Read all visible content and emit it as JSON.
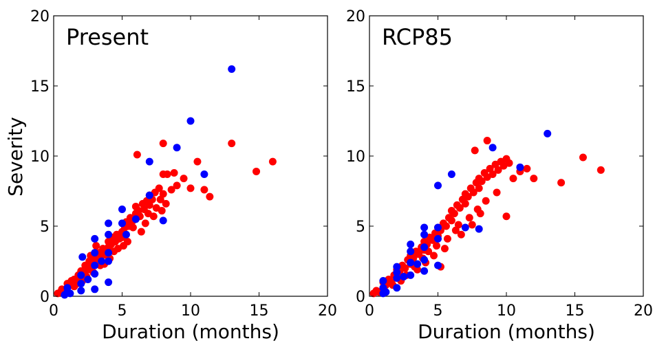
{
  "chart_data": [
    {
      "type": "scatter",
      "title": "Present",
      "xlabel": "Duration (months)",
      "ylabel": "Severity",
      "xlim": [
        0,
        20
      ],
      "ylim": [
        0,
        20
      ],
      "xticks": [
        "0",
        "5",
        "10",
        "15",
        "20"
      ],
      "yticks": [
        "0",
        "5",
        "10",
        "15",
        "20"
      ],
      "grid": false,
      "colors": {
        "red": "#ff0000",
        "blue": "#0000ff"
      },
      "series": [
        {
          "color": "#ff0000",
          "points": [
            [
              0.3,
              0.2
            ],
            [
              0.5,
              0.3
            ],
            [
              0.6,
              0.5
            ],
            [
              0.8,
              0.4
            ],
            [
              1,
              0.6
            ],
            [
              1,
              0.9
            ],
            [
              1.2,
              0.8
            ],
            [
              1.3,
              1.1
            ],
            [
              1.5,
              1.2
            ],
            [
              1.5,
              0.7
            ],
            [
              1.8,
              1.5
            ],
            [
              2,
              1.3
            ],
            [
              2,
              1.8
            ],
            [
              2.2,
              1.6
            ],
            [
              2.3,
              2.2
            ],
            [
              2.5,
              1.9
            ],
            [
              2.6,
              2.5
            ],
            [
              2.8,
              2.1
            ],
            [
              3,
              2.4
            ],
            [
              3,
              2.8
            ],
            [
              3.2,
              2.6
            ],
            [
              3.3,
              3.1
            ],
            [
              3.5,
              2.9
            ],
            [
              3.6,
              3.4
            ],
            [
              3.8,
              3.1
            ],
            [
              4,
              3.5
            ],
            [
              4,
              3.9
            ],
            [
              4.2,
              3.7
            ],
            [
              4.3,
              4.2
            ],
            [
              4.5,
              3.9
            ],
            [
              4.6,
              4.4
            ],
            [
              4.8,
              4.1
            ],
            [
              5,
              4.6
            ],
            [
              5,
              4.2
            ],
            [
              5.2,
              4.9
            ],
            [
              5.3,
              5.3
            ],
            [
              5.5,
              5
            ],
            [
              5.6,
              5.6
            ],
            [
              5.8,
              5.4
            ],
            [
              6,
              5.9
            ],
            [
              6,
              6.4
            ],
            [
              6.2,
              6.1
            ],
            [
              6.3,
              5.7
            ],
            [
              6.5,
              6.6
            ],
            [
              6.6,
              6.2
            ],
            [
              6.8,
              6.8
            ],
            [
              7,
              6.5
            ],
            [
              7,
              7.2
            ],
            [
              7.2,
              6.9
            ],
            [
              7.4,
              7.4
            ],
            [
              7.5,
              6.3
            ],
            [
              7.7,
              7.7
            ],
            [
              7.8,
              6.9
            ],
            [
              8,
              8.7
            ],
            [
              8,
              7.3
            ],
            [
              8.3,
              8.7
            ],
            [
              8.6,
              7.6
            ],
            [
              8.8,
              8.8
            ],
            [
              9,
              7.9
            ],
            [
              9.5,
              8.4
            ],
            [
              10,
              7.7
            ],
            [
              10.5,
              9.6
            ],
            [
              11,
              7.6
            ],
            [
              11.4,
              7.1
            ],
            [
              13,
              10.9
            ],
            [
              14.8,
              8.9
            ],
            [
              16,
              9.6
            ],
            [
              8,
              10.9
            ],
            [
              6.1,
              10.1
            ],
            [
              3.1,
              3.6
            ],
            [
              2.7,
              2.9
            ],
            [
              3.4,
              2.2
            ],
            [
              3.9,
              2.9
            ],
            [
              4.4,
              3.2
            ],
            [
              5.1,
              3.6
            ],
            [
              5.8,
              4.9
            ],
            [
              6.7,
              5.2
            ],
            [
              7.3,
              5.7
            ],
            [
              7.9,
              6.1
            ],
            [
              8.2,
              6.6
            ],
            [
              1.7,
              0.9
            ],
            [
              2.1,
              1.1
            ],
            [
              2.4,
              1.4
            ],
            [
              2.9,
              1.7
            ],
            [
              3.7,
              2.3
            ],
            [
              4.1,
              2.7
            ],
            [
              4.7,
              3.4
            ],
            [
              5.4,
              3.9
            ],
            [
              6.4,
              4.6
            ],
            [
              6.9,
              5.9
            ]
          ]
        },
        {
          "color": "#0000ff",
          "points": [
            [
              0.8,
              0.1
            ],
            [
              1,
              0.3
            ],
            [
              1,
              0.6
            ],
            [
              1.2,
              0.2
            ],
            [
              2,
              0.4
            ],
            [
              2,
              0.9
            ],
            [
              2,
              1.5
            ],
            [
              2.1,
              2.8
            ],
            [
              2.5,
              1.2
            ],
            [
              3,
              0.5
            ],
            [
              3,
              1.6
            ],
            [
              3,
              2.2
            ],
            [
              3,
              3.1
            ],
            [
              3,
              4.1
            ],
            [
              3.5,
              2.5
            ],
            [
              4,
              1
            ],
            [
              4,
              2.5
            ],
            [
              4,
              3.1
            ],
            [
              4,
              4.4
            ],
            [
              4,
              5.2
            ],
            [
              5,
              5.2
            ],
            [
              5,
              6.2
            ],
            [
              5.3,
              4.4
            ],
            [
              6,
              5.5
            ],
            [
              7,
              9.6
            ],
            [
              7,
              7.2
            ],
            [
              8,
              5.4
            ],
            [
              9,
              10.6
            ],
            [
              10,
              12.5
            ],
            [
              11,
              8.7
            ],
            [
              13,
              16.2
            ]
          ]
        }
      ]
    },
    {
      "type": "scatter",
      "title": "RCP85",
      "xlabel": "Duration (months)",
      "ylabel": "",
      "xlim": [
        0,
        20
      ],
      "ylim": [
        0,
        20
      ],
      "xticks": [
        "0",
        "5",
        "10",
        "15",
        "20"
      ],
      "yticks": [
        "0",
        "5",
        "10",
        "15",
        "20"
      ],
      "grid": false,
      "colors": {
        "red": "#ff0000",
        "blue": "#0000ff"
      },
      "series": [
        {
          "color": "#ff0000",
          "points": [
            [
              0.3,
              0.2
            ],
            [
              0.5,
              0.4
            ],
            [
              0.7,
              0.3
            ],
            [
              1,
              0.6
            ],
            [
              1,
              1
            ],
            [
              1.2,
              0.8
            ],
            [
              1.4,
              1.2
            ],
            [
              1.6,
              1
            ],
            [
              1.8,
              1.5
            ],
            [
              2,
              1.3
            ],
            [
              2,
              1.9
            ],
            [
              2.2,
              1.7
            ],
            [
              2.4,
              2.2
            ],
            [
              2.6,
              2
            ],
            [
              2.8,
              2.6
            ],
            [
              3,
              2.3
            ],
            [
              3,
              2.9
            ],
            [
              3.2,
              2.7
            ],
            [
              3.4,
              3.2
            ],
            [
              3.6,
              3
            ],
            [
              3.8,
              3.5
            ],
            [
              4,
              3.3
            ],
            [
              4,
              3.9
            ],
            [
              4.2,
              3.7
            ],
            [
              4.4,
              4.2
            ],
            [
              4.6,
              4
            ],
            [
              4.8,
              4.5
            ],
            [
              5,
              4.3
            ],
            [
              5,
              4.9
            ],
            [
              5.2,
              4.7
            ],
            [
              5.4,
              5.2
            ],
            [
              5.6,
              5
            ],
            [
              5.8,
              5.6
            ],
            [
              6,
              5.4
            ],
            [
              6,
              6.1
            ],
            [
              6.2,
              5.9
            ],
            [
              6.4,
              6.5
            ],
            [
              6.6,
              6.3
            ],
            [
              6.8,
              6.9
            ],
            [
              7,
              6.6
            ],
            [
              7,
              7.3
            ],
            [
              7.2,
              7.1
            ],
            [
              7.4,
              7.7
            ],
            [
              7.6,
              7.4
            ],
            [
              7.8,
              8.1
            ],
            [
              8,
              7.7
            ],
            [
              8,
              8.4
            ],
            [
              8.2,
              8.2
            ],
            [
              8.4,
              8.8
            ],
            [
              8.6,
              8.5
            ],
            [
              8.8,
              9.1
            ],
            [
              9,
              8.7
            ],
            [
              9.2,
              9.4
            ],
            [
              9.4,
              9
            ],
            [
              9.6,
              9.6
            ],
            [
              9.8,
              9.3
            ],
            [
              10,
              9.8
            ],
            [
              10.2,
              9.5
            ],
            [
              10.5,
              8.4
            ],
            [
              11,
              8.9
            ],
            [
              11.5,
              9.1
            ],
            [
              12,
              8.4
            ],
            [
              8.6,
              11.1
            ],
            [
              7.7,
              10.4
            ],
            [
              10,
              5.7
            ],
            [
              14,
              8.1
            ],
            [
              15.6,
              9.9
            ],
            [
              16.9,
              9
            ],
            [
              5.2,
              2.1
            ],
            [
              6.3,
              4.7
            ],
            [
              3.3,
              2.1
            ],
            [
              3.9,
              2.7
            ],
            [
              4.3,
              3.2
            ],
            [
              4.9,
              3.6
            ],
            [
              5.7,
              4.1
            ],
            [
              6.5,
              5.1
            ],
            [
              7.3,
              5.6
            ],
            [
              7.9,
              6.2
            ],
            [
              8.5,
              6.8
            ],
            [
              9.3,
              7.4
            ],
            [
              1.7,
              0.8
            ],
            [
              2.3,
              1.1
            ],
            [
              2.7,
              1.5
            ],
            [
              3.5,
              1.9
            ],
            [
              4.1,
              2.4
            ],
            [
              4.7,
              2.9
            ],
            [
              5.5,
              3.4
            ],
            [
              6.7,
              4.4
            ],
            [
              7.5,
              5.1
            ],
            [
              8.1,
              5.9
            ]
          ]
        },
        {
          "color": "#0000ff",
          "points": [
            [
              1,
              0.2
            ],
            [
              1,
              0.6
            ],
            [
              1,
              1.1
            ],
            [
              1.2,
              0.3
            ],
            [
              2,
              0.6
            ],
            [
              2,
              1.3
            ],
            [
              2,
              1.7
            ],
            [
              2,
              2.1
            ],
            [
              2.5,
              1.4
            ],
            [
              3,
              1.5
            ],
            [
              3,
              2.4
            ],
            [
              3,
              3.2
            ],
            [
              3,
              3.7
            ],
            [
              3.5,
              2.3
            ],
            [
              4,
              1.8
            ],
            [
              4,
              2.6
            ],
            [
              4,
              3.5
            ],
            [
              4,
              4.4
            ],
            [
              4,
              4.9
            ],
            [
              5,
              2.2
            ],
            [
              5,
              4.1
            ],
            [
              5,
              4.9
            ],
            [
              5,
              7.9
            ],
            [
              6,
              8.7
            ],
            [
              7,
              4.9
            ],
            [
              8,
              4.8
            ],
            [
              9,
              10.6
            ],
            [
              11,
              9.2
            ],
            [
              13,
              11.6
            ]
          ]
        }
      ]
    }
  ]
}
